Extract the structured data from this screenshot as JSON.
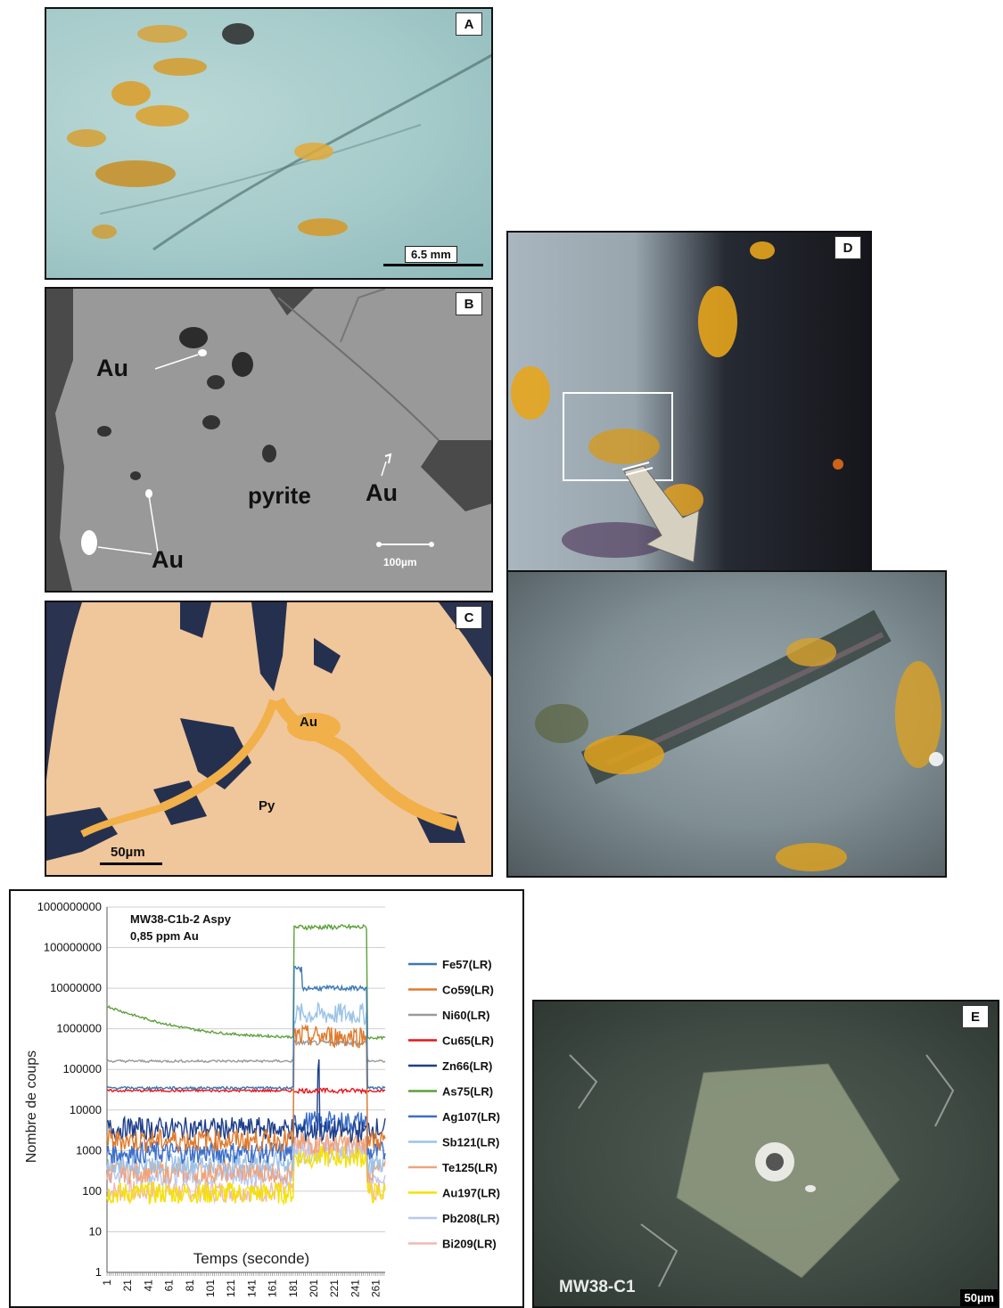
{
  "panels": {
    "A": {
      "letter": "A",
      "scale": "6.5 mm"
    },
    "B": {
      "letter": "B",
      "labels": [
        "Au",
        "pyrite",
        "Au",
        "Au"
      ],
      "scale": "100µm"
    },
    "C": {
      "letter": "C",
      "labels": [
        "Au",
        "Py"
      ],
      "scale": "50µm"
    },
    "D": {
      "letter": "D"
    },
    "E": {
      "letter": "E",
      "sample": "MW38-C1",
      "scale": "50µm"
    }
  },
  "chart_data": {
    "type": "line",
    "title": "MW38-C1b-2 Aspy",
    "subtitle": "0,85 ppm Au",
    "xlabel": "Temps (seconde)",
    "ylabel": "Nombre de coups",
    "yscale": "log",
    "ylim": [
      1,
      1000000000
    ],
    "yticks": [
      "1",
      "10",
      "100",
      "1000",
      "10000",
      "100000",
      "1000000",
      "10000000",
      "100000000",
      "1000000000"
    ],
    "xlim": [
      1,
      270
    ],
    "xticks": [
      "1",
      "21",
      "41",
      "61",
      "81",
      "101",
      "121",
      "141",
      "161",
      "181",
      "201",
      "221",
      "241",
      "261"
    ],
    "signal_window": [
      182,
      252
    ],
    "grid": true,
    "legend_position": "right",
    "series": [
      {
        "name": "Fe57(LR)",
        "color": "#3a78b5",
        "background": 35000,
        "signal": 10000000
      },
      {
        "name": "Co59(LR)",
        "color": "#e07a2c",
        "background": 1800,
        "signal": 650000
      },
      {
        "name": "Ni60(LR)",
        "color": "#9a9a9a",
        "background": 160000,
        "signal": 450000
      },
      {
        "name": "Cu65(LR)",
        "color": "#e8141b",
        "background": 30000,
        "signal": 30000
      },
      {
        "name": "Zn66(LR)",
        "color": "#1d3f8a",
        "background": 3500,
        "signal": 3000
      },
      {
        "name": "As75(LR)",
        "color": "#5da03b",
        "background": 600000,
        "signal": 320000000
      },
      {
        "name": "Ag107(LR)",
        "color": "#3d6ec9",
        "background": 900,
        "signal": 5000
      },
      {
        "name": "Sb121(LR)",
        "color": "#9cc3e8",
        "background": 500,
        "signal": 2300000
      },
      {
        "name": "Te125(LR)",
        "color": "#f0a37a",
        "background": 300,
        "signal": 1500
      },
      {
        "name": "Au197(LR)",
        "color": "#f5e200",
        "background": 90,
        "signal": 700
      },
      {
        "name": "Pb208(LR)",
        "color": "#b9c8ef",
        "background": 250,
        "signal": 900
      },
      {
        "name": "Bi209(LR)",
        "color": "#f2b9b4",
        "background": 100,
        "signal": 1200
      }
    ]
  }
}
